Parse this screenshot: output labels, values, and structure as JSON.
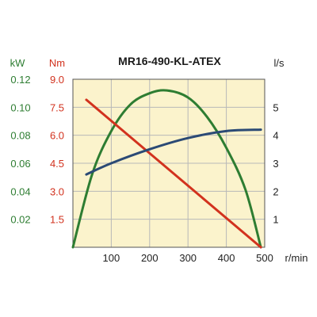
{
  "chart_data": {
    "type": "line",
    "title": "MR16-490-KL-ATEX",
    "x_axis": {
      "unit": "r/min",
      "range": [
        0,
        500
      ],
      "ticks": [
        100,
        200,
        300,
        400,
        500
      ]
    },
    "y_axes": [
      {
        "id": "power",
        "unit": "kW",
        "side": "left-outer",
        "range": [
          0,
          0.12
        ],
        "ticks": [
          0.02,
          0.04,
          0.06,
          0.08,
          0.1,
          0.12
        ],
        "tick_labels": [
          "0.02",
          "0.04",
          "0.06",
          "0.08",
          "0.10",
          "0.12"
        ],
        "color": "#2e7d32"
      },
      {
        "id": "torque",
        "unit": "Nm",
        "side": "left-inner",
        "range": [
          0,
          9
        ],
        "ticks": [
          1.5,
          3.0,
          4.5,
          6.0,
          7.5,
          9.0
        ],
        "tick_labels": [
          "1.5",
          "3.0",
          "4.5",
          "6.0",
          "7.5",
          "9.0"
        ],
        "color": "#d2321e"
      },
      {
        "id": "flow",
        "unit": "l/s",
        "side": "right",
        "range": [
          0,
          6
        ],
        "ticks": [
          1,
          2,
          3,
          4,
          5
        ],
        "tick_labels": [
          "1",
          "2",
          "3",
          "4",
          "5"
        ],
        "color": "#222222"
      }
    ],
    "series": [
      {
        "axis": "power",
        "color": "#2e7d32",
        "shape": "parabola",
        "x": [
          0,
          50,
          100,
          150,
          200,
          245,
          300,
          350,
          400,
          450,
          490
        ],
        "values": [
          0,
          0.052,
          0.083,
          0.102,
          0.11,
          0.112,
          0.107,
          0.093,
          0.071,
          0.041,
          0.0
        ]
      },
      {
        "axis": "torque",
        "color": "#d2321e",
        "shape": "linear",
        "x": [
          35,
          490
        ],
        "values": [
          7.9,
          0
        ]
      },
      {
        "axis": "flow",
        "color": "#2b4a75",
        "shape": "curve",
        "x": [
          35,
          100,
          200,
          300,
          400,
          490
        ],
        "values": [
          2.6,
          3.0,
          3.5,
          3.9,
          4.15,
          4.2
        ]
      }
    ],
    "grid": true,
    "legend": "none",
    "colors": {
      "plot_bg": "#fbf3cc",
      "grid": "#b8b8b8",
      "frame": "#555555",
      "title": "#1a1a1a"
    }
  }
}
